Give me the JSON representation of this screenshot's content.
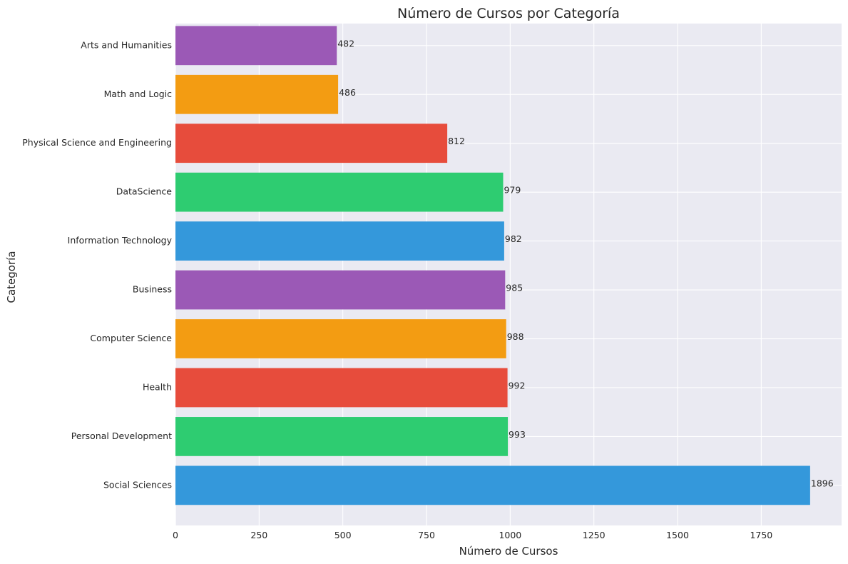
{
  "chart_data": {
    "type": "bar",
    "orientation": "horizontal",
    "title": "Número de Cursos por Categoría",
    "xlabel": "Número de Cursos",
    "ylabel": "Categoría",
    "categories": [
      "Social Sciences",
      "Personal Development",
      "Health",
      "Computer Science",
      "Business",
      "Information Technology",
      "DataScience",
      "Physical Science and Engineering",
      "Math and Logic",
      "Arts and Humanities"
    ],
    "values": [
      1896,
      993,
      992,
      988,
      985,
      982,
      979,
      812,
      486,
      482
    ],
    "data_labels": [
      "1896",
      "993",
      "992",
      "988",
      "985",
      "982",
      "979",
      "812",
      "486",
      "482"
    ],
    "colors": [
      "#3498db",
      "#2ecc71",
      "#e74c3c",
      "#f39c12",
      "#9b59b6",
      "#3498db",
      "#2ecc71",
      "#e74c3c",
      "#f39c12",
      "#9b59b6"
    ],
    "xlim": [
      0,
      1990
    ],
    "xticks": [
      0,
      250,
      500,
      750,
      1000,
      1250,
      1500,
      1750
    ],
    "xtick_labels": [
      "0",
      "250",
      "500",
      "750",
      "1000",
      "1250",
      "1500",
      "1750"
    ],
    "grid": true,
    "background": "#eaeaf2"
  }
}
